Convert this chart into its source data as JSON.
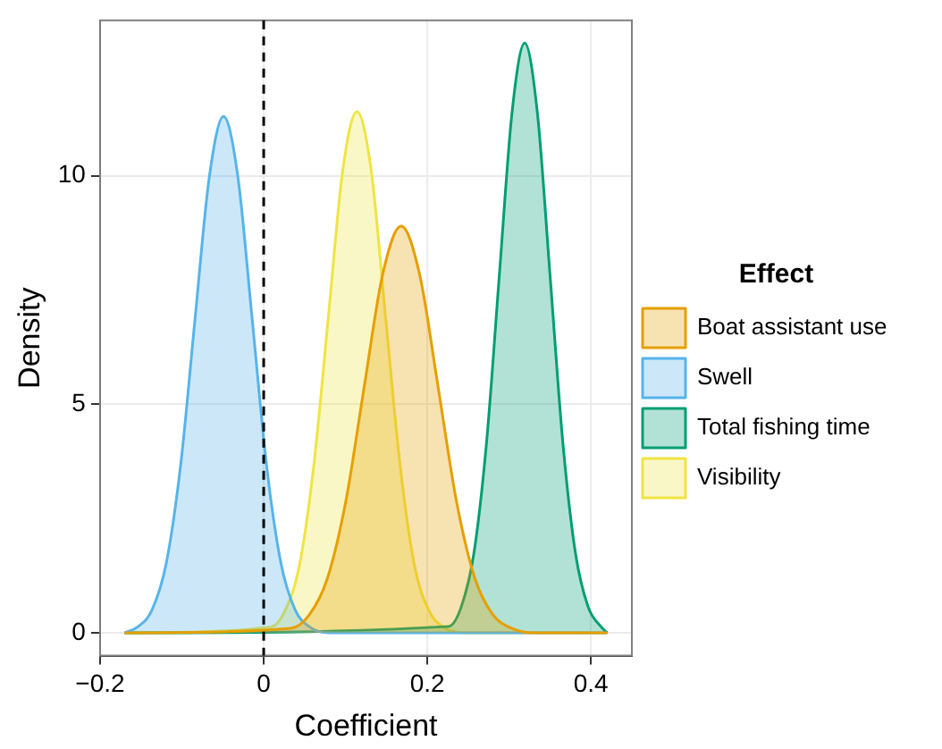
{
  "chart_data": {
    "type": "area",
    "xlabel": "Coefficient",
    "ylabel": "Density",
    "legend_title": "Effect",
    "legend": "right",
    "grid": true,
    "xlim": [
      -0.2,
      0.45
    ],
    "xticks": [
      {
        "value": -0.2,
        "label": "−0.2"
      },
      0.0,
      0.2,
      0.4
    ],
    "ylim": [
      -0.5,
      13.4
    ],
    "yticks": [
      0,
      5,
      10
    ],
    "ref_lines": [
      {
        "axis": "x",
        "value": 0,
        "color": "#000000",
        "line_style": "dashed"
      }
    ],
    "series": [
      {
        "name": "Boat assistant use",
        "color": "#e69f00",
        "x": [
          -0.17,
          0.033,
          0.0555,
          0.078,
          0.1005,
          0.123,
          0.1455,
          0.168,
          0.1905,
          0.213,
          0.2355,
          0.258,
          0.2805,
          0.303,
          0.33,
          0.42
        ],
        "values": [
          0,
          0.1,
          0.39,
          1.2,
          2.89,
          5.4,
          7.85,
          8.9,
          7.85,
          5.4,
          2.89,
          1.2,
          0.39,
          0.1,
          0,
          0
        ]
      },
      {
        "name": "Swell",
        "color": "#56b4e9",
        "x": [
          -0.17,
          -0.154,
          -0.1365,
          -0.119,
          -0.1015,
          -0.084,
          -0.0665,
          -0.049,
          -0.0315,
          -0.014,
          0.0035,
          0.021,
          0.0385,
          0.056,
          0.08,
          0.42
        ],
        "values": [
          0,
          0.13,
          0.5,
          1.53,
          3.67,
          6.85,
          9.97,
          11.3,
          9.97,
          6.85,
          3.67,
          1.53,
          0.5,
          0.13,
          0,
          0
        ]
      },
      {
        "name": "Total fishing time",
        "color": "#009e73",
        "x": [
          -0.17,
          0.226,
          0.2415,
          0.257,
          0.2725,
          0.288,
          0.3035,
          0.319,
          0.3345,
          0.35,
          0.3655,
          0.381,
          0.3965,
          0.412,
          0.42
        ],
        "values": [
          0,
          0.14,
          0.57,
          1.75,
          4.19,
          7.82,
          11.38,
          12.9,
          11.38,
          7.82,
          4.19,
          1.75,
          0.57,
          0.14,
          0
        ]
      },
      {
        "name": "Visibility",
        "color": "#f0e442",
        "x": [
          -0.17,
          0.009,
          0.0265,
          0.044,
          0.0615,
          0.079,
          0.0965,
          0.114,
          0.1315,
          0.149,
          0.1665,
          0.184,
          0.2015,
          0.219,
          0.25,
          0.42
        ],
        "values": [
          0,
          0.13,
          0.5,
          1.5,
          3.7,
          6.9,
          10.1,
          11.4,
          10.1,
          6.9,
          3.7,
          1.5,
          0.5,
          0.13,
          0,
          0
        ]
      }
    ]
  }
}
